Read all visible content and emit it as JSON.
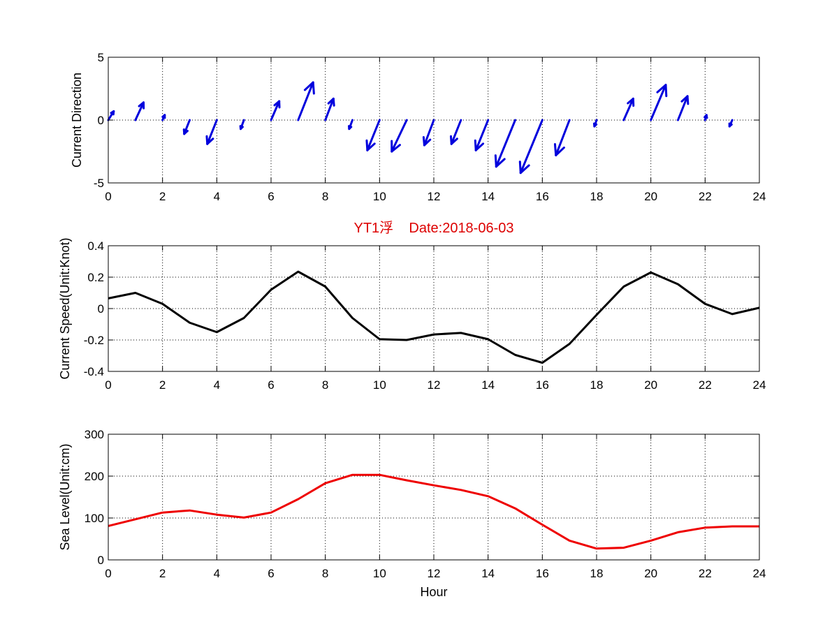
{
  "title": "YT1浮    Date:2018-06-03",
  "title_color": "#dd0000",
  "chart_data": [
    {
      "type": "quiver",
      "ylabel": "Current Direction",
      "xlim": [
        0,
        24
      ],
      "ylim": [
        -5,
        5
      ],
      "xticks": [
        0,
        2,
        4,
        6,
        8,
        10,
        12,
        14,
        16,
        18,
        20,
        22,
        24
      ],
      "yticks": [
        -5,
        0,
        5
      ],
      "color": "#0000dd",
      "grid": true,
      "x": [
        0,
        1,
        2,
        3,
        4,
        5,
        6,
        7,
        8,
        9,
        10,
        11,
        12,
        13,
        14,
        15,
        16,
        17,
        18,
        19,
        20,
        21,
        22,
        23,
        24
      ],
      "u": [
        0.2,
        0.3,
        0.08,
        -0.2,
        -0.35,
        -0.12,
        0.3,
        0.55,
        0.3,
        -0.12,
        -0.45,
        -0.55,
        -0.35,
        -0.35,
        -0.45,
        -0.7,
        -0.8,
        -0.5,
        -0.08,
        0.35,
        0.55,
        0.35,
        0.05,
        -0.1,
        0
      ],
      "v": [
        0.7,
        1.4,
        0.4,
        -1.1,
        -1.9,
        -0.7,
        1.5,
        3.0,
        1.7,
        -0.7,
        -2.4,
        -2.5,
        -2.0,
        -1.9,
        -2.4,
        -3.7,
        -4.2,
        -2.8,
        -0.5,
        1.7,
        2.8,
        1.9,
        0.4,
        -0.5,
        0
      ]
    },
    {
      "type": "line",
      "ylabel": "Current Speed(Unit:Knot)",
      "xlim": [
        0,
        24
      ],
      "ylim": [
        -0.4,
        0.4
      ],
      "xticks": [
        0,
        2,
        4,
        6,
        8,
        10,
        12,
        14,
        16,
        18,
        20,
        22,
        24
      ],
      "yticks": [
        -0.4,
        -0.2,
        0,
        0.2,
        0.4
      ],
      "color": "#000000",
      "grid": true,
      "x": [
        0,
        1,
        2,
        3,
        4,
        5,
        6,
        7,
        8,
        9,
        10,
        11,
        12,
        13,
        14,
        15,
        16,
        17,
        18,
        19,
        20,
        21,
        22,
        23,
        24
      ],
      "y": [
        0.065,
        0.1,
        0.03,
        -0.09,
        -0.15,
        -0.06,
        0.12,
        0.235,
        0.14,
        -0.06,
        -0.195,
        -0.2,
        -0.165,
        -0.155,
        -0.195,
        -0.295,
        -0.345,
        -0.225,
        -0.04,
        0.14,
        0.23,
        0.155,
        0.03,
        -0.035,
        0.005
      ]
    },
    {
      "type": "line",
      "ylabel": "Sea Level(Unit:cm)",
      "xlabel": "Hour",
      "xlim": [
        0,
        24
      ],
      "ylim": [
        0,
        300
      ],
      "xticks": [
        0,
        2,
        4,
        6,
        8,
        10,
        12,
        14,
        16,
        18,
        20,
        22,
        24
      ],
      "yticks": [
        0,
        100,
        200,
        300
      ],
      "color": "#ee0000",
      "grid": true,
      "x": [
        0,
        1,
        2,
        3,
        4,
        5,
        6,
        7,
        8,
        9,
        10,
        11,
        12,
        13,
        14,
        15,
        16,
        17,
        18,
        19,
        20,
        21,
        22,
        23,
        24
      ],
      "y": [
        81,
        97,
        113,
        118,
        108,
        101,
        113,
        145,
        183,
        203,
        203,
        190,
        178,
        167,
        152,
        123,
        84,
        46,
        27,
        29,
        46,
        66,
        77,
        80,
        80
      ]
    }
  ]
}
